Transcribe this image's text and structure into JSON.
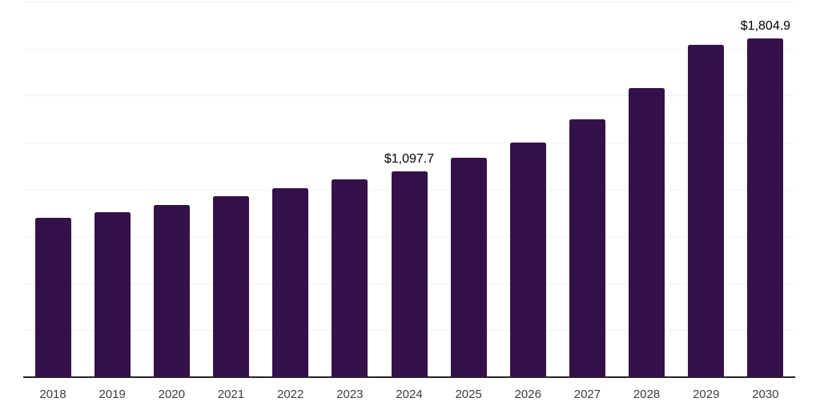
{
  "chart_data": {
    "type": "bar",
    "title": "",
    "xlabel": "",
    "ylabel": "",
    "categories": [
      "2018",
      "2019",
      "2020",
      "2021",
      "2022",
      "2023",
      "2024",
      "2025",
      "2026",
      "2027",
      "2028",
      "2029",
      "2030"
    ],
    "values": [
      850,
      880,
      915,
      965,
      1005,
      1055,
      1097.7,
      1170,
      1250,
      1375,
      1540,
      1770,
      1804.9
    ],
    "data_labels": {
      "2024": "$1,097.7",
      "2030": "$1,804.9"
    },
    "ylim": [
      0,
      2000
    ],
    "gridline_step": 250,
    "grid": true,
    "legend": "none",
    "y_axis_labels_visible": false,
    "colors": {
      "bar": "#35114a",
      "gridline": "#f2f2f2",
      "axis_line": "#262626",
      "tick_label": "#3d3d3d",
      "data_label": "#000000",
      "background": "#ffffff"
    }
  }
}
